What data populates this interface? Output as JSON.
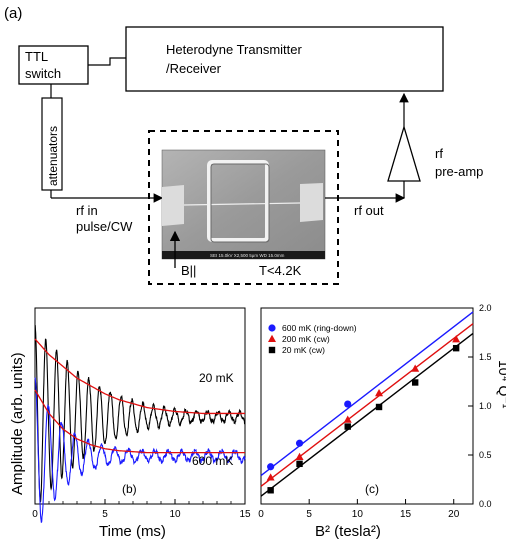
{
  "figure": {
    "panel_a": {
      "label": "(a)",
      "ttl_box": [
        "TTL",
        "switch"
      ],
      "transmitter_box": [
        "Heterodyne Transmitter",
        "/Receiver"
      ],
      "attenuators": "attenuators",
      "rf_in": [
        "rf in",
        "pulse/CW"
      ],
      "rf_out": "rf out",
      "preamp": [
        "rf",
        "pre-amp"
      ],
      "b_field": "B||",
      "temperature": "T<4.2K",
      "sem_caption": "SEI  15.0kV  X2,500  5μm  WD 15.0mm"
    },
    "colors": {
      "accent_red": "#e01010",
      "blue": "#1a1aff",
      "black_trace": "#000000",
      "sem_gray": "#9a9a9a"
    }
  },
  "chart_data": [
    {
      "type": "line",
      "panel": "(b)",
      "xlabel": "Time (ms)",
      "ylabel": "Amplitude (arb. units)",
      "xlim": [
        0,
        15
      ],
      "x_ticks": [
        "0",
        "5",
        "10",
        "15"
      ],
      "series": [
        {
          "name": "20 mK",
          "color": "#000000",
          "kind": "ring-down",
          "x": [
            0,
            1,
            2,
            3,
            4,
            5,
            6,
            7,
            8,
            9,
            10,
            11,
            12,
            13,
            14,
            15
          ],
          "envelope": [
            0.88,
            0.8,
            0.74,
            0.68,
            0.64,
            0.6,
            0.57,
            0.55,
            0.53,
            0.52,
            0.51,
            0.505,
            0.5,
            0.5,
            0.5,
            0.5
          ]
        },
        {
          "name": "600 mK",
          "color": "#1a1aff",
          "kind": "ring-down",
          "x": [
            0,
            1,
            2,
            3,
            4,
            5,
            6,
            7,
            8,
            9,
            10,
            11,
            12,
            13,
            14,
            15
          ],
          "envelope": [
            0.62,
            0.5,
            0.42,
            0.37,
            0.34,
            0.32,
            0.31,
            0.305,
            0.3,
            0.3,
            0.3,
            0.3,
            0.3,
            0.3,
            0.3,
            0.3
          ]
        }
      ],
      "fit_color": "#e01010",
      "annotations": [
        "20 mK",
        "600 mK"
      ]
    },
    {
      "type": "scatter",
      "panel": "(c)",
      "xlabel": "B² (tesla²)",
      "ylabel": "10⁴ Q⁻¹",
      "xlim": [
        0,
        22
      ],
      "ylim": [
        0,
        2.0
      ],
      "x_ticks": [
        "0",
        "5",
        "10",
        "15",
        "20"
      ],
      "y_ticks": [
        "0.0",
        "0.5",
        "1.0",
        "1.5",
        "2.0"
      ],
      "legend_position": "top-left",
      "series": [
        {
          "name": "600 mK (ring-down)",
          "marker": "circle",
          "color": "#1a1aff",
          "x": [
            1,
            4,
            9
          ],
          "y": [
            0.38,
            0.62,
            1.02
          ],
          "fit": {
            "x": [
              0,
              22
            ],
            "y": [
              0.29,
              1.96
            ]
          }
        },
        {
          "name": "200 mK (cw)",
          "marker": "triangle",
          "color": "#e01010",
          "x": [
            1,
            4,
            9,
            12.25,
            16,
            20.25
          ],
          "y": [
            0.27,
            0.48,
            0.86,
            1.13,
            1.38,
            1.68
          ],
          "fit": {
            "x": [
              0,
              22
            ],
            "y": [
              0.18,
              1.84
            ]
          }
        },
        {
          "name": "20 mK (cw)",
          "marker": "square",
          "color": "#000000",
          "x": [
            1,
            4,
            9,
            12.25,
            16,
            20.25
          ],
          "y": [
            0.14,
            0.41,
            0.79,
            0.99,
            1.24,
            1.59
          ],
          "fit": {
            "x": [
              0,
              22
            ],
            "y": [
              0.08,
              1.74
            ]
          }
        }
      ]
    }
  ]
}
